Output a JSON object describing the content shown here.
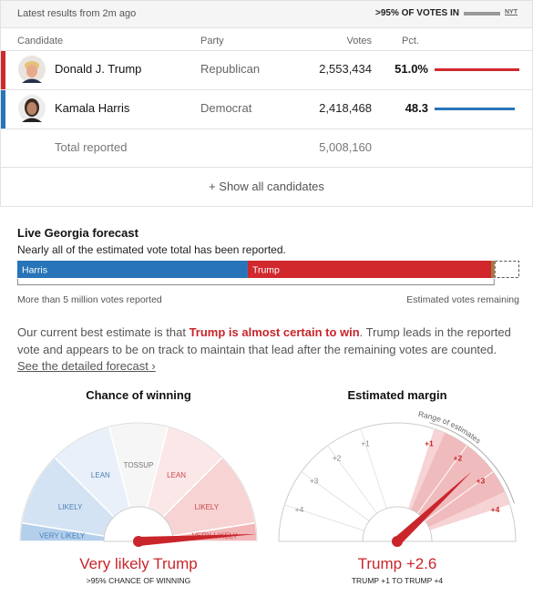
{
  "header": {
    "updated": "Latest results from 2m ago",
    "reporting": ">95% OF VOTES IN",
    "source": "NYT"
  },
  "table": {
    "columns": [
      "Candidate",
      "Party",
      "Votes",
      "Pct."
    ],
    "rows": [
      {
        "candidate": "Donald J. Trump",
        "party": "Republican",
        "votes": 2553434,
        "votes_label": "2,553,434",
        "pct": 51.0,
        "pct_label": "51.0%",
        "color": "#d0282d"
      },
      {
        "candidate": "Kamala Harris",
        "party": "Democrat",
        "votes": 2418468,
        "votes_label": "2,418,468",
        "pct": 48.3,
        "pct_label": "48.3",
        "color": "#2774b8"
      }
    ],
    "total": {
      "label": "Total reported",
      "votes": 5008160,
      "votes_label": "5,008,160"
    },
    "show_all": "+ Show all candidates"
  },
  "forecast": {
    "title": "Live Georgia forecast",
    "subtitle": "Nearly all of the estimated vote total has been reported.",
    "segments": [
      {
        "name": "Harris",
        "votes": 2418468,
        "color": "#2774b8"
      },
      {
        "name": "Trump",
        "votes": 2553434,
        "color": "#d0282d"
      }
    ],
    "other": {
      "votes": 36258,
      "color": "#a8763e"
    },
    "remaining": {
      "votes": 260000
    },
    "reported_label": "More than 5 million votes reported",
    "remaining_label": "Estimated votes remaining"
  },
  "summary": {
    "lead": "Our current best estimate is that ",
    "highlight": "Trump is almost certain to win",
    "body": ". Trump leads in the reported vote and appears to be on track to maintain that lead after the remaining votes are counted. ",
    "link": "See the detailed forecast ›"
  },
  "chance": {
    "title": "Chance of winning",
    "lim": [
      0,
      100
    ],
    "bands": [
      {
        "label": "VERY LIKELY",
        "from": 0,
        "to": 5,
        "color": "#b3cfec"
      },
      {
        "label": "LIKELY",
        "from": 5,
        "to": 25,
        "color": "#d4e3f3"
      },
      {
        "label": "LEAN",
        "from": 25,
        "to": 42,
        "color": "#e9f0f9"
      },
      {
        "label": "TOSSUP",
        "from": 42,
        "to": 58,
        "color": "#f6f6f6"
      },
      {
        "label": "LEAN",
        "from": 58,
        "to": 75,
        "color": "#fbe7e7"
      },
      {
        "label": "LIKELY",
        "from": 75,
        "to": 95,
        "color": "#f7d3d4"
      },
      {
        "label": "VERY LIKELY",
        "from": 95,
        "to": 100,
        "color": "#f3b7b9"
      }
    ],
    "value": 98,
    "headline": "Very likely Trump",
    "detail": ">95% CHANCE OF WINNING"
  },
  "margin": {
    "title": "Estimated margin",
    "lim": [
      -5,
      5
    ],
    "ticks": [
      {
        "value": -4,
        "label": "+4"
      },
      {
        "value": -3,
        "label": "+3"
      },
      {
        "value": -2,
        "label": "+2"
      },
      {
        "value": -1,
        "label": "+1"
      },
      {
        "value": 1,
        "label": "+1"
      },
      {
        "value": 2,
        "label": "+2"
      },
      {
        "value": 3,
        "label": "+3"
      },
      {
        "value": 4,
        "label": "+4"
      }
    ],
    "range": [
      1,
      4
    ],
    "range_label": "Range of estimates",
    "value": 2.6,
    "headline": "Trump +2.6",
    "detail": "TRUMP +1 TO TRUMP +4"
  }
}
